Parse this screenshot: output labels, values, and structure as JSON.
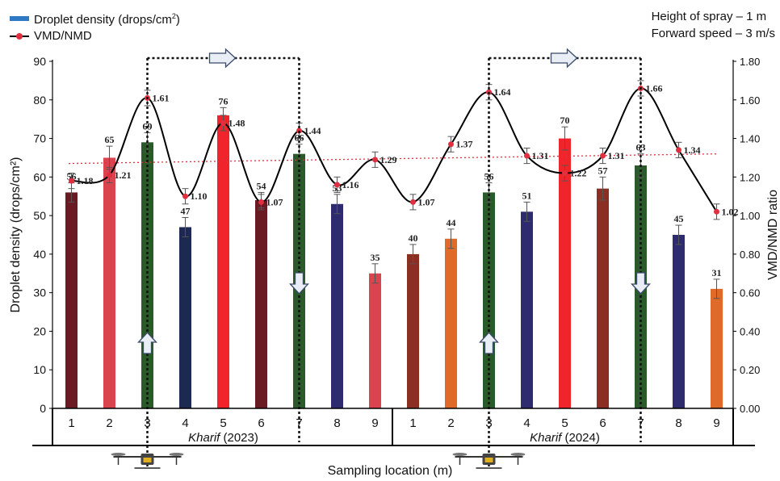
{
  "legend": {
    "bar_label_prefix": "Droplet density (drops/cm",
    "bar_label_sup": "2",
    "bar_label_suffix": ")",
    "line_label": "VMD/NMD"
  },
  "notes": {
    "height": "Height of spray – 1 m",
    "speed": "Forward speed – 3 m/s"
  },
  "chart_data": {
    "type": "bar",
    "groups": [
      "Kharif (2023)",
      "Kharif (2024)"
    ],
    "group_title_word": "Kharif",
    "group_years": [
      "(2023)",
      "(2024)"
    ],
    "categories": [
      "1",
      "2",
      "3",
      "4",
      "5",
      "6",
      "7",
      "8",
      "9",
      "1",
      "2",
      "3",
      "4",
      "5",
      "6",
      "7",
      "8",
      "9"
    ],
    "series": [
      {
        "name": "Droplet density (drops/cm2)",
        "axis": "left",
        "values": [
          56,
          65,
          69,
          47,
          76,
          54,
          66,
          53,
          35,
          40,
          44,
          56,
          51,
          70,
          57,
          63,
          45,
          31
        ],
        "labels": [
          "56",
          "65",
          "69",
          "47",
          "76",
          "54",
          "66",
          "53",
          "35",
          "40",
          "44",
          "56",
          "51",
          "70",
          "57",
          "63",
          "45",
          "31"
        ],
        "errors": [
          2.5,
          3,
          2.5,
          2.5,
          2,
          2,
          2.5,
          2.5,
          2.5,
          2.5,
          2.5,
          2.5,
          2.5,
          3,
          3,
          3,
          2.5,
          2.5
        ],
        "colors": [
          "#6a1a22",
          "#d9444e",
          "#2a5a2a",
          "#1c2a52",
          "#f0252c",
          "#6a1a22",
          "#2a5a2a",
          "#2e2c6e",
          "#d9444e",
          "#8b2f22",
          "#e06a2a",
          "#2a5a2a",
          "#2e2c6e",
          "#f0252c",
          "#8b2f22",
          "#2a5a2a",
          "#2e2c6e",
          "#e06a2a"
        ]
      },
      {
        "name": "VMD/NMD",
        "axis": "right",
        "values": [
          1.18,
          1.21,
          1.61,
          1.1,
          1.48,
          1.07,
          1.44,
          1.16,
          1.29,
          1.07,
          1.37,
          1.64,
          1.31,
          1.22,
          1.31,
          1.66,
          1.34,
          1.02
        ],
        "labels": [
          "1.18",
          "1.21",
          "1.61",
          "1.10",
          "1.48",
          "1.07",
          "1.44",
          "1.16",
          "1.29",
          "1.07",
          "1.37",
          "1.64",
          "1.31",
          "1.22",
          "1.31",
          "1.66",
          "1.34",
          "1.02"
        ]
      }
    ],
    "trendline": {
      "style": "dotted",
      "color": "#e03040",
      "start": 1.27,
      "end": 1.32
    },
    "ylabel": "Droplet density (drops/cm²)",
    "ylabel_right": "VMD/NMD ratio",
    "xlabel": "Sampling location (m)",
    "ylim": [
      0,
      90
    ],
    "ylim_right": [
      0,
      1.8
    ],
    "yticks": [
      "0",
      "10",
      "20",
      "30",
      "40",
      "50",
      "60",
      "70",
      "80",
      "90"
    ],
    "yticks_right": [
      "0.00",
      "0.20",
      "0.40",
      "0.60",
      "0.80",
      "1.00",
      "1.20",
      "1.40",
      "1.60",
      "1.80"
    ],
    "annotations": {
      "drone_pass_locations": [
        3,
        7
      ],
      "arrows": [
        "right",
        "up",
        "down"
      ]
    },
    "grid": false
  }
}
